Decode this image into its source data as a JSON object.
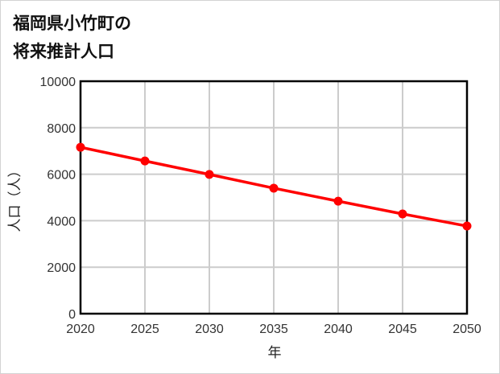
{
  "title": {
    "line1": "福岡県小竹町の",
    "line2": "将来推計人口"
  },
  "chart_data": {
    "type": "line",
    "title": "福岡県小竹町の将来推計人口",
    "xlabel": "年",
    "ylabel": "人口（人）",
    "categories": [
      "2020",
      "2025",
      "2030",
      "2035",
      "2040",
      "2045",
      "2050"
    ],
    "x": [
      2020,
      2025,
      2030,
      2035,
      2040,
      2045,
      2050
    ],
    "series": [
      {
        "name": "人口",
        "values": [
          7160,
          6570,
          5990,
          5400,
          4840,
          4290,
          3770
        ],
        "color": "#ff0000"
      }
    ],
    "ylim": [
      0,
      10000
    ],
    "yticks": [
      "0",
      "2000",
      "4000",
      "6000",
      "8000",
      "10000"
    ],
    "grid": true,
    "legend": "none"
  }
}
